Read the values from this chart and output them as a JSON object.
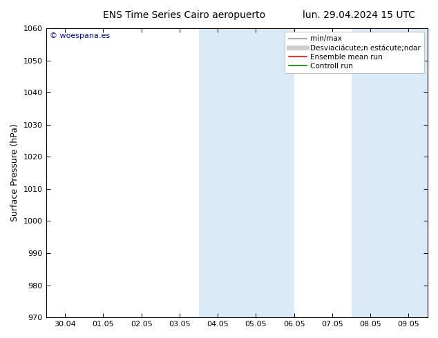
{
  "title_left": "ENS Time Series Cairo aeropuerto",
  "title_right": "lun. 29.04.2024 15 UTC",
  "ylabel": "Surface Pressure (hPa)",
  "ylim": [
    970,
    1060
  ],
  "yticks": [
    970,
    980,
    990,
    1000,
    1010,
    1020,
    1030,
    1040,
    1050,
    1060
  ],
  "xtick_labels": [
    "30.04",
    "01.05",
    "02.05",
    "03.05",
    "04.05",
    "05.05",
    "06.05",
    "07.05",
    "08.05",
    "09.05"
  ],
  "num_xticks": 10,
  "xlim": [
    -0.5,
    9.5
  ],
  "shaded_regions": [
    {
      "xstart": 3.5,
      "xend": 4.5
    },
    {
      "xstart": 4.5,
      "xend": 6.0
    },
    {
      "xstart": 7.5,
      "xend": 9.5
    }
  ],
  "shaded_color": "#daeaf7",
  "background_color": "#ffffff",
  "watermark_text": "© woespana.es",
  "watermark_color": "#0000bb",
  "legend_minmax_color": "#999999",
  "legend_band_color": "#cccccc",
  "legend_mean_color": "#ff0000",
  "legend_control_color": "#008800",
  "title_fontsize": 10,
  "tick_fontsize": 8,
  "ylabel_fontsize": 9,
  "legend_fontsize": 7.5
}
